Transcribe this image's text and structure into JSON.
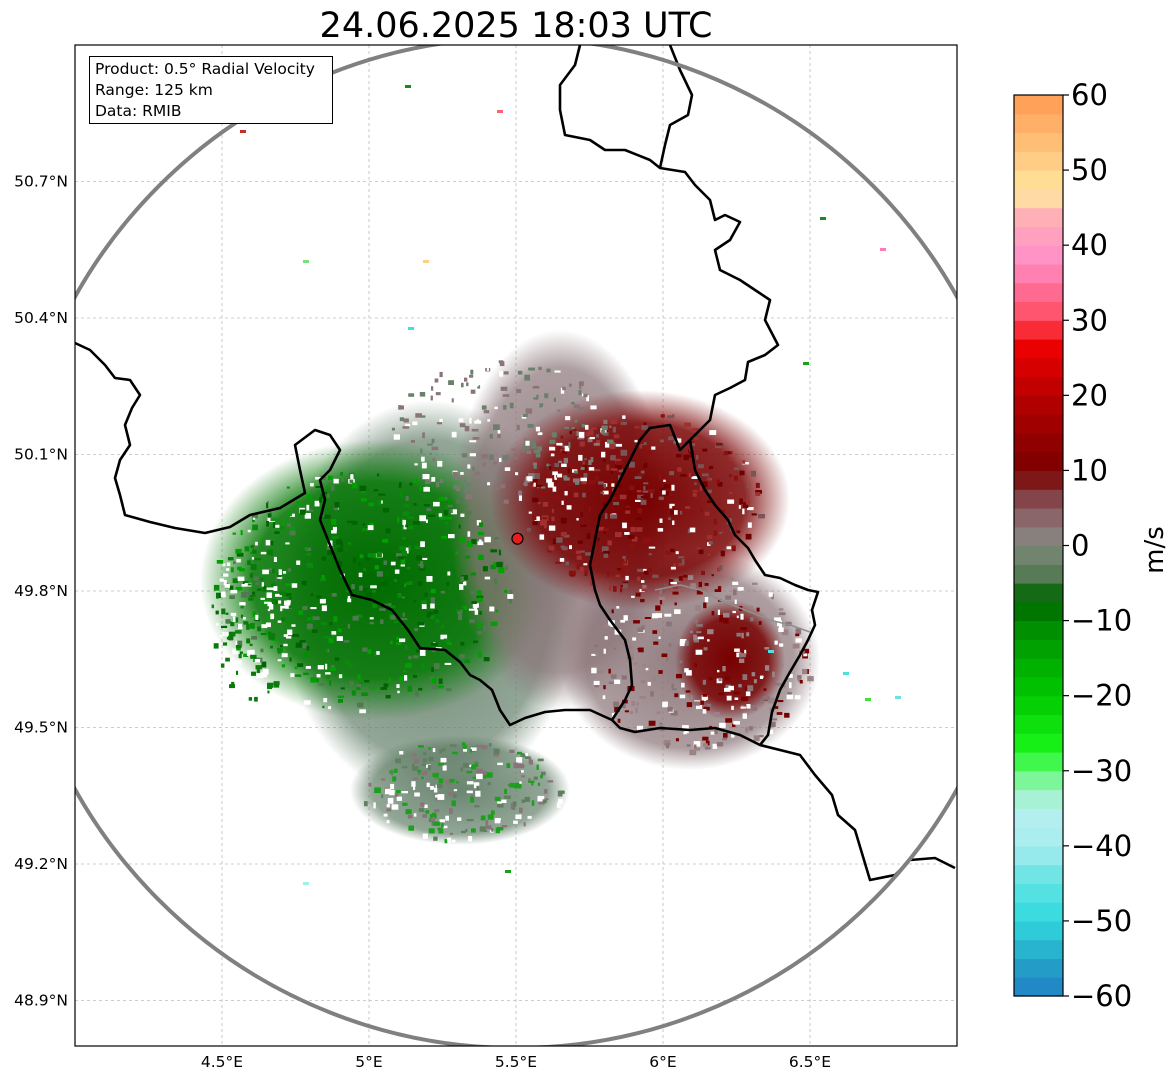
{
  "title": "24.06.2025 18:03 UTC",
  "info": {
    "product": "Product: 0.5° Radial Velocity",
    "range": "Range: 125 km",
    "data": "Data: RMIB"
  },
  "map": {
    "lon_range": [
      4.0,
      7.0
    ],
    "lat_range": [
      48.8,
      51.0
    ],
    "lon_ticks": [
      {
        "value": 4.5,
        "label": "4.5°E"
      },
      {
        "value": 5.0,
        "label": "5°E"
      },
      {
        "value": 5.5,
        "label": "5.5°E"
      },
      {
        "value": 6.0,
        "label": "6°E"
      },
      {
        "value": 6.5,
        "label": "6.5°E"
      }
    ],
    "lat_ticks": [
      {
        "value": 50.7,
        "label": "50.7°N"
      },
      {
        "value": 50.4,
        "label": "50.4°N"
      },
      {
        "value": 50.1,
        "label": "50.1°N"
      },
      {
        "value": 49.8,
        "label": "49.8°N"
      },
      {
        "value": 49.5,
        "label": "49.5°N"
      },
      {
        "value": 49.2,
        "label": "49.2°N"
      },
      {
        "value": 48.9,
        "label": "48.9°N"
      }
    ],
    "gridlines": true,
    "radar_site": {
      "lon": 5.505,
      "lat": 49.915
    },
    "range_ring_km": 125
  },
  "colorbar": {
    "label": "m/s",
    "min": -60,
    "max": 60,
    "ticks": [
      {
        "value": 60,
        "label": "60"
      },
      {
        "value": 50,
        "label": "50"
      },
      {
        "value": 40,
        "label": "40"
      },
      {
        "value": 30,
        "label": "30"
      },
      {
        "value": 20,
        "label": "20"
      },
      {
        "value": 10,
        "label": "10"
      },
      {
        "value": 0,
        "label": "0"
      },
      {
        "value": -10,
        "label": "−10"
      },
      {
        "value": -20,
        "label": "−20"
      },
      {
        "value": -30,
        "label": "−30"
      },
      {
        "value": -40,
        "label": "−40"
      },
      {
        "value": -50,
        "label": "−50"
      },
      {
        "value": -60,
        "label": "−60"
      }
    ],
    "stops": [
      {
        "value": -60,
        "color": "#1f7fc4"
      },
      {
        "value": -55,
        "color": "#25a6c9"
      },
      {
        "value": -50,
        "color": "#2fd9dd"
      },
      {
        "value": -45,
        "color": "#5fe3e3"
      },
      {
        "value": -40,
        "color": "#a8ecee"
      },
      {
        "value": -35,
        "color": "#b8f0f0"
      },
      {
        "value": -32,
        "color": "#8ff5b0"
      },
      {
        "value": -30,
        "color": "#5cf870"
      },
      {
        "value": -27,
        "color": "#19f519"
      },
      {
        "value": -20,
        "color": "#00c800"
      },
      {
        "value": -12,
        "color": "#009600"
      },
      {
        "value": -7,
        "color": "#006400"
      },
      {
        "value": -4,
        "color": "#557a55"
      },
      {
        "value": 0,
        "color": "#7d8a7a"
      },
      {
        "value": 2,
        "color": "#8e7a7e"
      },
      {
        "value": 6,
        "color": "#844a4e"
      },
      {
        "value": 10,
        "color": "#7a0000"
      },
      {
        "value": 20,
        "color": "#b80000"
      },
      {
        "value": 27,
        "color": "#f00000"
      },
      {
        "value": 30,
        "color": "#ff4a5e"
      },
      {
        "value": 38,
        "color": "#ff8fc8"
      },
      {
        "value": 44,
        "color": "#ffb0b5"
      },
      {
        "value": 47,
        "color": "#ffe8a0"
      },
      {
        "value": 53,
        "color": "#ffc27a"
      },
      {
        "value": 60,
        "color": "#ff9a50"
      }
    ]
  }
}
